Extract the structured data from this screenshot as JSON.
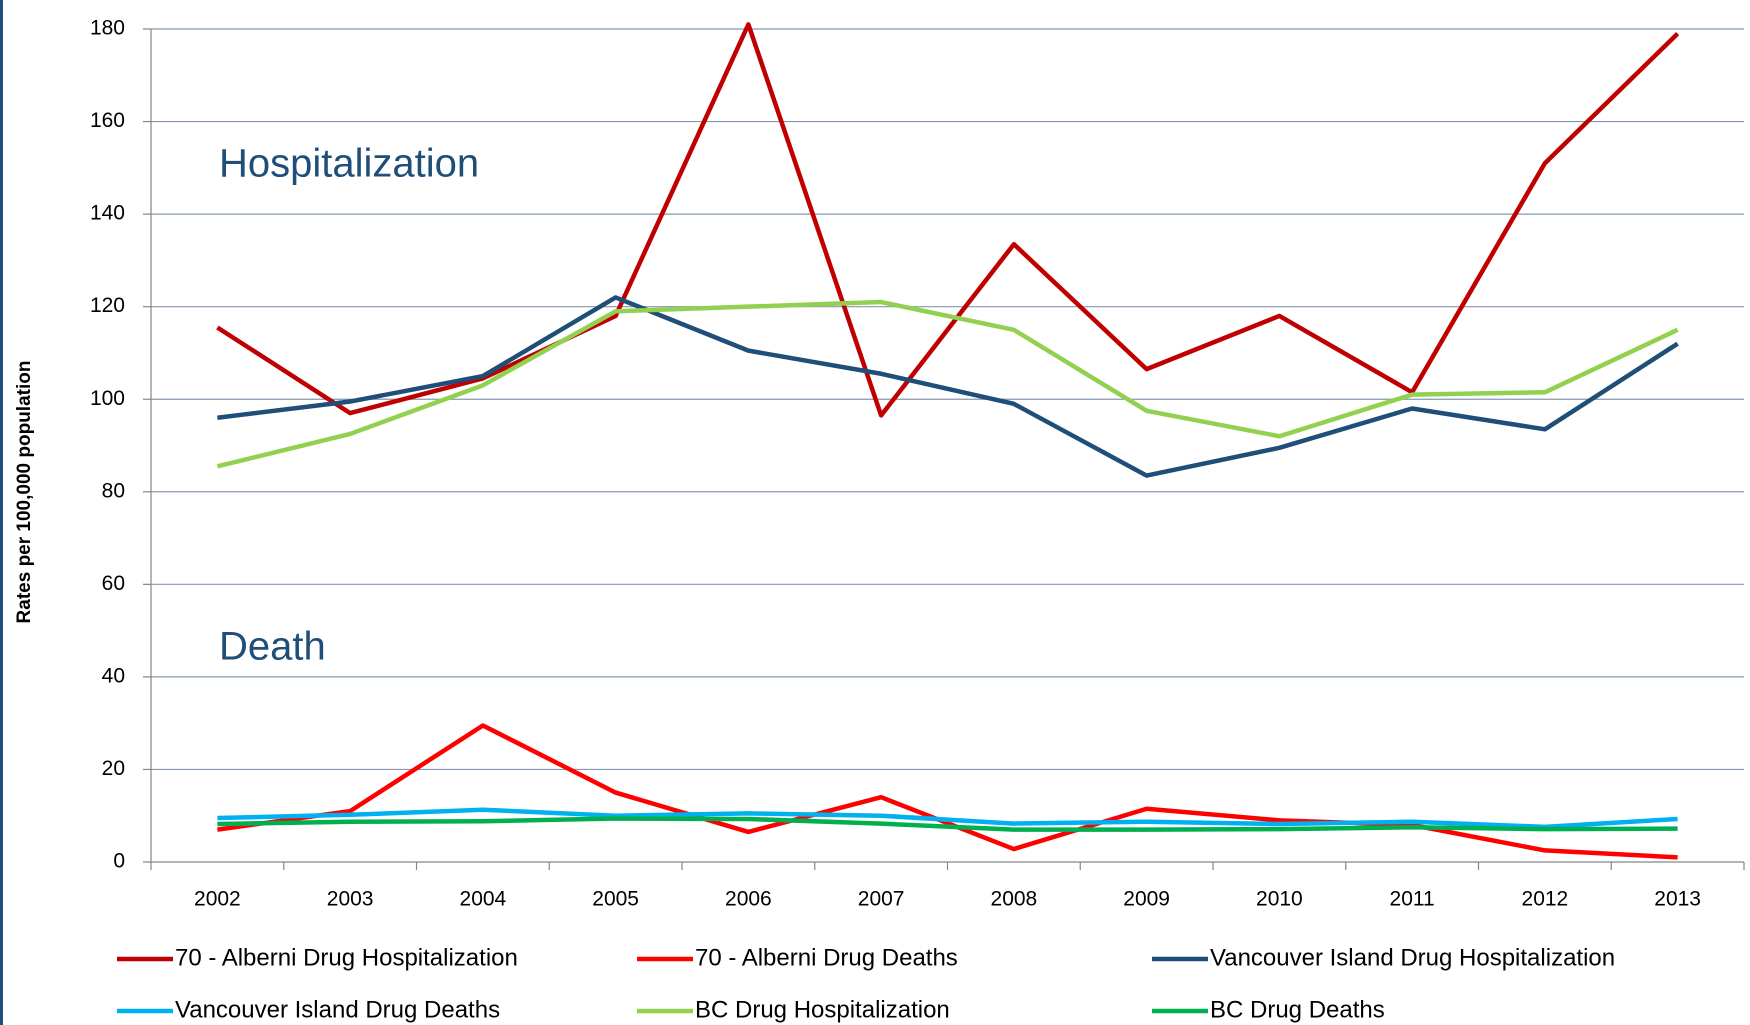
{
  "chart_data": {
    "type": "line",
    "y_label": "Rates per 100,000 population",
    "annotations": [
      "Hospitalization",
      "Death"
    ],
    "categories": [
      "2002",
      "2003",
      "2004",
      "2005",
      "2006",
      "2007",
      "2008",
      "2009",
      "2010",
      "2011",
      "2012",
      "2013"
    ],
    "series": [
      {
        "name": "70 - Alberni Drug Hospitalization",
        "color": "#c00000",
        "values": [
          115.5,
          97,
          104.5,
          118,
          181,
          96.5,
          133.5,
          106.5,
          118,
          101.5,
          151,
          179
        ]
      },
      {
        "name": "70 - Alberni Drug Deaths",
        "color": "#ff0000",
        "values": [
          7,
          11,
          29.5,
          15,
          6.5,
          14,
          2.8,
          11.5,
          9,
          8,
          2.5,
          1
        ]
      },
      {
        "name": "Vancouver Island Drug Hospitalization",
        "color": "#1f4e79",
        "values": [
          96,
          99.5,
          105,
          122,
          110.5,
          105.5,
          99,
          83.5,
          89.5,
          98,
          93.5,
          112
        ]
      },
      {
        "name": "Vancouver Island Drug Deaths",
        "color": "#00b0f0",
        "values": [
          9.5,
          10.2,
          11.3,
          10,
          10.5,
          10,
          8.3,
          8.7,
          8.2,
          8.7,
          7.6,
          9.3
        ]
      },
      {
        "name": "BC Drug Hospitalization",
        "color": "#92d050",
        "values": [
          85.5,
          92.5,
          103,
          119,
          120,
          121,
          115,
          97.5,
          92,
          101,
          101.5,
          115
        ]
      },
      {
        "name": "BC Drug Deaths",
        "color": "#00b050",
        "values": [
          8.2,
          8.7,
          8.8,
          9.4,
          9.3,
          8.3,
          7,
          7,
          7.1,
          7.5,
          7.1,
          7.2
        ]
      }
    ],
    "ylim": [
      0,
      180
    ],
    "yticks": [
      0,
      20,
      40,
      60,
      80,
      100,
      120,
      140,
      160,
      180
    ],
    "grid": true
  }
}
